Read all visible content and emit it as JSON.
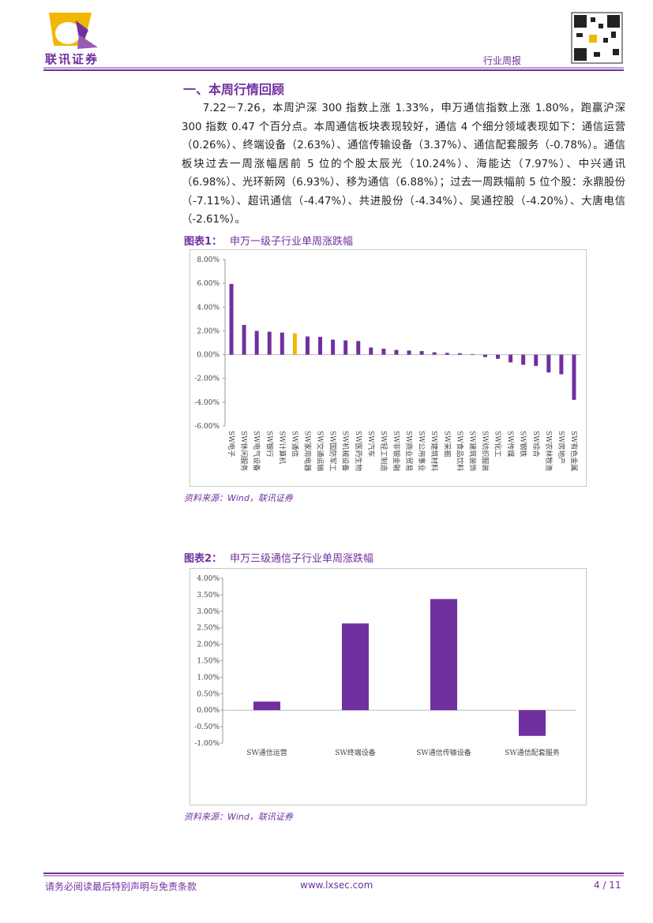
{
  "header": {
    "logo_text": "联讯证券",
    "report_type": "行业周报"
  },
  "section": {
    "title": "一、本周行情回顾",
    "paragraph": "7.22－7.26，本周沪深 300 指数上涨 1.33%，申万通信指数上涨 1.80%，跑赢沪深 300 指数 0.47 个百分点。本周通信板块表现较好，通信 4 个细分领域表现如下：通信运营（0.26%）、终端设备（2.63%）、通信传输设备（3.37%）、通信配套服务（-0.78%）。通信板块过去一周涨幅居前 5 位的个股太辰光（10.24%）、海能达（7.97%）、中兴通讯（6.98%）、光环新网（6.93%）、移为通信（6.88%）；过去一周跌幅前 5 位个股：永鼎股份（-7.11%）、超讯通信（-4.47%）、共进股份（-4.34%）、吴通控股（-4.20%）、大唐电信（-2.61%）。"
  },
  "chart_data": [
    {
      "type": "bar",
      "label": "图表1：",
      "title": "申万一级子行业单周涨跌幅",
      "source": "资料来源：Wind，联讯证券",
      "categories": [
        "SW电子",
        "SW休闲服务",
        "SW电气设备",
        "SW银行",
        "SW计算机",
        "SW通信",
        "SW家用电器",
        "SW交通运输",
        "SW国防军工",
        "SW机械设备",
        "SW医药生物",
        "SW汽车",
        "SW轻工制造",
        "SW非银金融",
        "SW商业贸易",
        "SW公用事业",
        "SW建筑材料",
        "SW采掘",
        "SW食品饮料",
        "SW建筑装饰",
        "SW纺织服装",
        "SW化工",
        "SW传媒",
        "SW钢铁",
        "SW综合",
        "SW农林牧渔",
        "SW房地产",
        "SW有色金属"
      ],
      "values": [
        5.95,
        2.5,
        2.0,
        1.93,
        1.86,
        1.8,
        1.53,
        1.5,
        1.26,
        1.2,
        1.15,
        0.6,
        0.5,
        0.4,
        0.35,
        0.3,
        0.2,
        0.15,
        0.12,
        0.05,
        -0.2,
        -0.35,
        -0.65,
        -0.85,
        -0.95,
        -1.5,
        -1.65,
        -3.8
      ],
      "colors": [
        "#7030a0",
        "#7030a0",
        "#7030a0",
        "#7030a0",
        "#7030a0",
        "#f2b705",
        "#7030a0",
        "#7030a0",
        "#7030a0",
        "#7030a0",
        "#7030a0",
        "#7030a0",
        "#7030a0",
        "#7030a0",
        "#7030a0",
        "#7030a0",
        "#7030a0",
        "#7030a0",
        "#7030a0",
        "#7030a0",
        "#7030a0",
        "#7030a0",
        "#7030a0",
        "#7030a0",
        "#7030a0",
        "#7030a0",
        "#7030a0",
        "#7030a0"
      ],
      "ylim": [
        -6,
        8
      ],
      "yticks": [
        {
          "value": -6,
          "label": "-6.00%"
        },
        {
          "value": -4,
          "label": "-4.00%"
        },
        {
          "value": -2,
          "label": "-2.00%"
        },
        {
          "value": 0,
          "label": "0.00%"
        },
        {
          "value": 2,
          "label": "2.00%"
        },
        {
          "value": 4,
          "label": "4.00%"
        },
        {
          "value": 6,
          "label": "6.00%"
        },
        {
          "value": 8,
          "label": "8.00%"
        }
      ]
    },
    {
      "type": "bar",
      "label": "图表2：",
      "title": "申万三级通信子行业单周涨跌幅",
      "source": "资料来源：Wind，联讯证券",
      "categories": [
        "SW通信运营",
        "SW终端设备",
        "SW通信传输设备",
        "SW通信配套服务"
      ],
      "values": [
        0.26,
        2.63,
        3.37,
        -0.78
      ],
      "colors": [
        "#7030a0",
        "#7030a0",
        "#7030a0",
        "#7030a0"
      ],
      "ylim": [
        -1,
        4
      ],
      "yticks": [
        {
          "value": -1,
          "label": "-1.00%"
        },
        {
          "value": -0.5,
          "label": "-0.50%"
        },
        {
          "value": 0,
          "label": "0.00%"
        },
        {
          "value": 0.5,
          "label": "0.50%"
        },
        {
          "value": 1,
          "label": "1.00%"
        },
        {
          "value": 1.5,
          "label": "1.50%"
        },
        {
          "value": 2,
          "label": "2.00%"
        },
        {
          "value": 2.5,
          "label": "2.50%"
        },
        {
          "value": 3,
          "label": "3.00%"
        },
        {
          "value": 3.5,
          "label": "3.50%"
        },
        {
          "value": 4,
          "label": "4.00%"
        }
      ]
    }
  ],
  "footer": {
    "disclaimer": "请务必阅读最后特别声明与免责条款",
    "website": "www.lxsec.com",
    "page": "4 / 11"
  }
}
